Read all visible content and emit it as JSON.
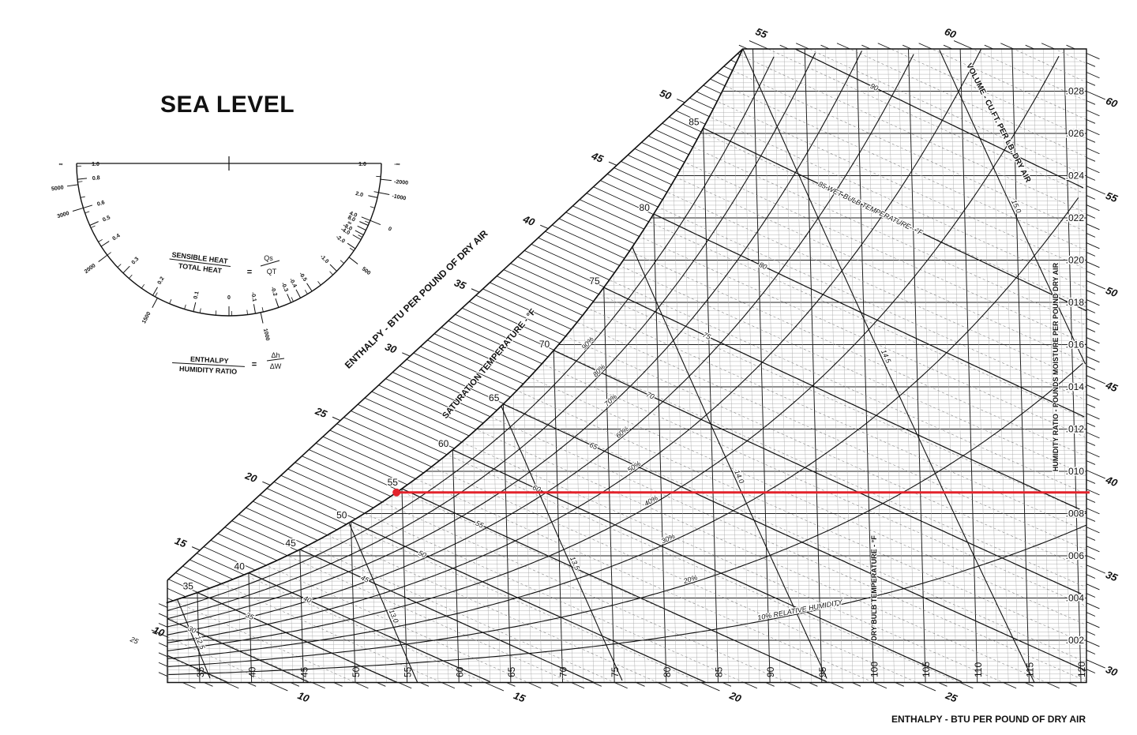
{
  "chart_data": {
    "type": "psychrometric",
    "title": "SEA LEVEL",
    "x_axis": {
      "label": "DRY BULB TEMPERATURE - °F",
      "ticks": [
        35,
        40,
        45,
        50,
        55,
        60,
        65,
        70,
        75,
        80,
        85,
        90,
        95,
        100,
        105,
        110,
        115,
        120
      ],
      "range": [
        32,
        120
      ]
    },
    "y_axis": {
      "label": "HUMIDITY RATIO - POUNDS MOISTURE PER POUND DRY AIR",
      "ticks": [
        ".002",
        ".004",
        ".006",
        ".008",
        ".010",
        ".012",
        ".014",
        ".016",
        ".018",
        ".020",
        ".022",
        ".024",
        ".026",
        ".028"
      ],
      "tick_values": [
        0.002,
        0.004,
        0.006,
        0.008,
        0.01,
        0.012,
        0.014,
        0.016,
        0.018,
        0.02,
        0.022,
        0.024,
        0.026,
        0.028
      ],
      "range": [
        0,
        0.03
      ],
      "side": "right"
    },
    "enthalpy": {
      "label": "ENTHALPY - BTU PER POUND OF DRY AIR",
      "diagonal_ticks": [
        15,
        20,
        25,
        30,
        35,
        40,
        45,
        50
      ],
      "left_ticks": [
        10
      ],
      "bottom_ticks": [
        10,
        15,
        20,
        25
      ],
      "top_ticks": [
        55,
        60
      ],
      "right_ticks": [
        30,
        35,
        40,
        45,
        50,
        55,
        60
      ]
    },
    "saturation": {
      "label": "SATURATION TEMPERATURE - °F",
      "ticks": [
        35,
        40,
        45,
        50,
        55,
        60,
        65,
        70,
        75,
        80,
        85
      ]
    },
    "wet_bulb": {
      "lines": [
        25,
        30,
        35,
        40,
        45,
        50,
        55,
        60,
        65,
        70,
        75,
        80,
        85,
        90
      ],
      "labels": [
        {
          "t": 25,
          "text": "25"
        },
        {
          "t": 30,
          "text": "30"
        },
        {
          "t": 35,
          "text": "35"
        },
        {
          "t": 40,
          "text": "40"
        },
        {
          "t": 45,
          "text": "45"
        },
        {
          "t": 50,
          "text": "50"
        },
        {
          "t": 55,
          "text": "55"
        },
        {
          "t": 60,
          "text": "60"
        },
        {
          "t": 65,
          "text": "65"
        },
        {
          "t": 70,
          "text": "70"
        },
        {
          "t": 75,
          "text": "75"
        },
        {
          "t": 80,
          "text": "80"
        },
        {
          "t": 85,
          "text": "85  WET BULB TEMPERATURE - °F"
        },
        {
          "t": 90,
          "text": "90"
        }
      ]
    },
    "relative_humidity": {
      "values": [
        10,
        20,
        30,
        40,
        50,
        60,
        70,
        80,
        90
      ],
      "labels": [
        "10% RELATIVE HUMIDITY",
        "20%",
        "30%",
        "40%",
        "50%",
        "60%",
        "70%",
        "80%",
        "90%"
      ]
    },
    "volume": {
      "label": "VOLUME - CU.FT. PER LB. DRY AIR",
      "values": [
        12.5,
        13.0,
        13.5,
        14.0,
        14.5,
        15.0
      ],
      "labels": [
        "12.5",
        "13.0",
        "13.5",
        "14.0",
        "14.5",
        "15.0"
      ]
    },
    "highlight": {
      "color": "#e3232c",
      "humidity_ratio": 0.009,
      "start": "saturation",
      "end_dry_bulb": 120
    },
    "grid": true,
    "protractor": {
      "shr_formula": {
        "top": "SENSIBLE HEAT",
        "bottom": "TOTAL HEAT",
        "equals": "=",
        "num": "Qs",
        "den": "QT"
      },
      "ratio_formula": {
        "top": "ENTHALPY",
        "bottom": "HUMIDITY RATIO",
        "equals": "=",
        "num": "Δh",
        "den": "ΔW"
      },
      "shr_ticks": [
        "1.0",
        "0.8",
        "0.6",
        "0.5",
        "0.4",
        "0.3",
        "0.2",
        "0.1",
        "0",
        "-0.1",
        "-0.2",
        "-0.3",
        "-0.4",
        "-0.5",
        "-1.0",
        "-2.0",
        "-4.0",
        "-8.0",
        "∞",
        "8.0",
        "4.0",
        "2.0",
        "1.0"
      ],
      "ratio_ticks": [
        "∞",
        "5000",
        "3000",
        "2000",
        "1500",
        "1000",
        "500",
        "0",
        "-1000",
        "-2000",
        "-∞"
      ]
    }
  }
}
